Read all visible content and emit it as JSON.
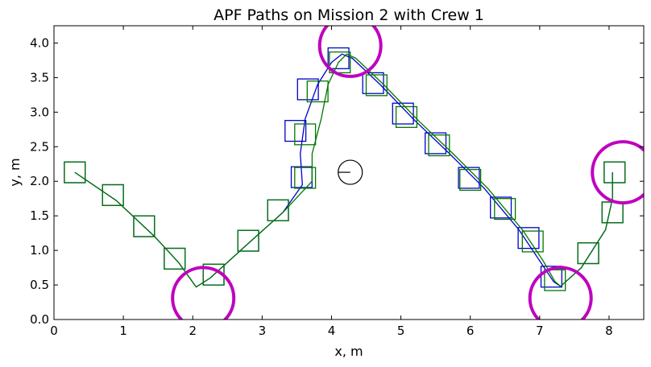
{
  "chart_data": {
    "type": "line",
    "title": "APF Paths on Mission 2 with Crew 1",
    "xlabel": "x, m",
    "ylabel": "y, m",
    "xlim": [
      0,
      8.5
    ],
    "ylim": [
      0,
      4.25
    ],
    "xticks": [
      "0",
      "1",
      "2",
      "3",
      "4",
      "5",
      "6",
      "7",
      "8"
    ],
    "yticks": [
      "0.0",
      "0.5",
      "1.0",
      "1.5",
      "2.0",
      "2.5",
      "3.0",
      "3.5",
      "4.0"
    ],
    "grid": false,
    "colors": {
      "blue": "#0000cc",
      "green": "#007700",
      "magenta": "#bf00bf",
      "black": "#000000"
    },
    "series": [
      {
        "color": "blue",
        "path": [
          [
            0.3,
            2.13
          ],
          [
            0.9,
            1.72
          ],
          [
            1.45,
            1.2
          ],
          [
            1.8,
            0.82
          ],
          [
            2.05,
            0.47
          ],
          [
            2.25,
            0.6
          ],
          [
            2.8,
            1.1
          ],
          [
            3.3,
            1.55
          ],
          [
            3.58,
            1.95
          ],
          [
            3.55,
            2.4
          ],
          [
            3.62,
            2.9
          ],
          [
            3.8,
            3.4
          ],
          [
            4.0,
            3.72
          ],
          [
            4.15,
            3.84
          ],
          [
            4.3,
            3.78
          ],
          [
            4.7,
            3.4
          ],
          [
            5.2,
            2.88
          ],
          [
            5.7,
            2.4
          ],
          [
            6.2,
            1.9
          ],
          [
            6.7,
            1.3
          ],
          [
            7.0,
            0.85
          ],
          [
            7.2,
            0.55
          ],
          [
            7.3,
            0.48
          ],
          [
            7.6,
            0.75
          ],
          [
            7.95,
            1.3
          ],
          [
            8.05,
            1.75
          ],
          [
            8.05,
            2.13
          ]
        ],
        "squares": [
          [
            0.3,
            2.13
          ],
          [
            0.85,
            1.8
          ],
          [
            1.3,
            1.35
          ],
          [
            1.74,
            0.88
          ],
          [
            2.3,
            0.65
          ],
          [
            2.8,
            1.14
          ],
          [
            3.23,
            1.58
          ],
          [
            3.57,
            2.06
          ],
          [
            3.48,
            2.73
          ],
          [
            3.66,
            3.33
          ],
          [
            4.1,
            3.78
          ],
          [
            4.6,
            3.42
          ],
          [
            5.03,
            2.98
          ],
          [
            5.5,
            2.55
          ],
          [
            5.98,
            2.05
          ],
          [
            6.44,
            1.62
          ],
          [
            6.84,
            1.18
          ],
          [
            7.17,
            0.62
          ],
          [
            7.7,
            0.96
          ],
          [
            8.05,
            1.55
          ],
          [
            8.08,
            2.13
          ]
        ]
      },
      {
        "color": "green",
        "path": [
          [
            0.3,
            2.13
          ],
          [
            0.9,
            1.72
          ],
          [
            1.45,
            1.2
          ],
          [
            1.8,
            0.82
          ],
          [
            2.05,
            0.47
          ],
          [
            2.25,
            0.6
          ],
          [
            2.8,
            1.1
          ],
          [
            3.3,
            1.55
          ],
          [
            3.72,
            2.0
          ],
          [
            3.72,
            2.4
          ],
          [
            3.85,
            2.9
          ],
          [
            3.95,
            3.4
          ],
          [
            4.1,
            3.72
          ],
          [
            4.22,
            3.84
          ],
          [
            4.35,
            3.78
          ],
          [
            4.75,
            3.4
          ],
          [
            5.25,
            2.88
          ],
          [
            5.75,
            2.4
          ],
          [
            6.25,
            1.9
          ],
          [
            6.75,
            1.3
          ],
          [
            7.05,
            0.85
          ],
          [
            7.22,
            0.55
          ],
          [
            7.3,
            0.48
          ],
          [
            7.6,
            0.75
          ],
          [
            7.95,
            1.3
          ],
          [
            8.05,
            1.75
          ],
          [
            8.05,
            2.13
          ]
        ],
        "squares": [
          [
            0.3,
            2.13
          ],
          [
            0.85,
            1.8
          ],
          [
            1.3,
            1.35
          ],
          [
            1.74,
            0.88
          ],
          [
            2.3,
            0.65
          ],
          [
            2.8,
            1.14
          ],
          [
            3.23,
            1.58
          ],
          [
            3.62,
            2.05
          ],
          [
            3.62,
            2.68
          ],
          [
            3.8,
            3.3
          ],
          [
            4.12,
            3.72
          ],
          [
            4.65,
            3.39
          ],
          [
            5.08,
            2.93
          ],
          [
            5.55,
            2.52
          ],
          [
            6.0,
            2.02
          ],
          [
            6.5,
            1.6
          ],
          [
            6.9,
            1.13
          ],
          [
            7.22,
            0.57
          ],
          [
            7.7,
            0.96
          ],
          [
            8.05,
            1.55
          ],
          [
            8.08,
            2.13
          ]
        ]
      }
    ],
    "circles": [
      [
        2.15,
        0.31
      ],
      [
        4.27,
        3.96
      ],
      [
        7.3,
        0.31
      ],
      [
        8.2,
        2.13
      ]
    ],
    "obstacle": [
      4.27,
      2.13
    ]
  }
}
